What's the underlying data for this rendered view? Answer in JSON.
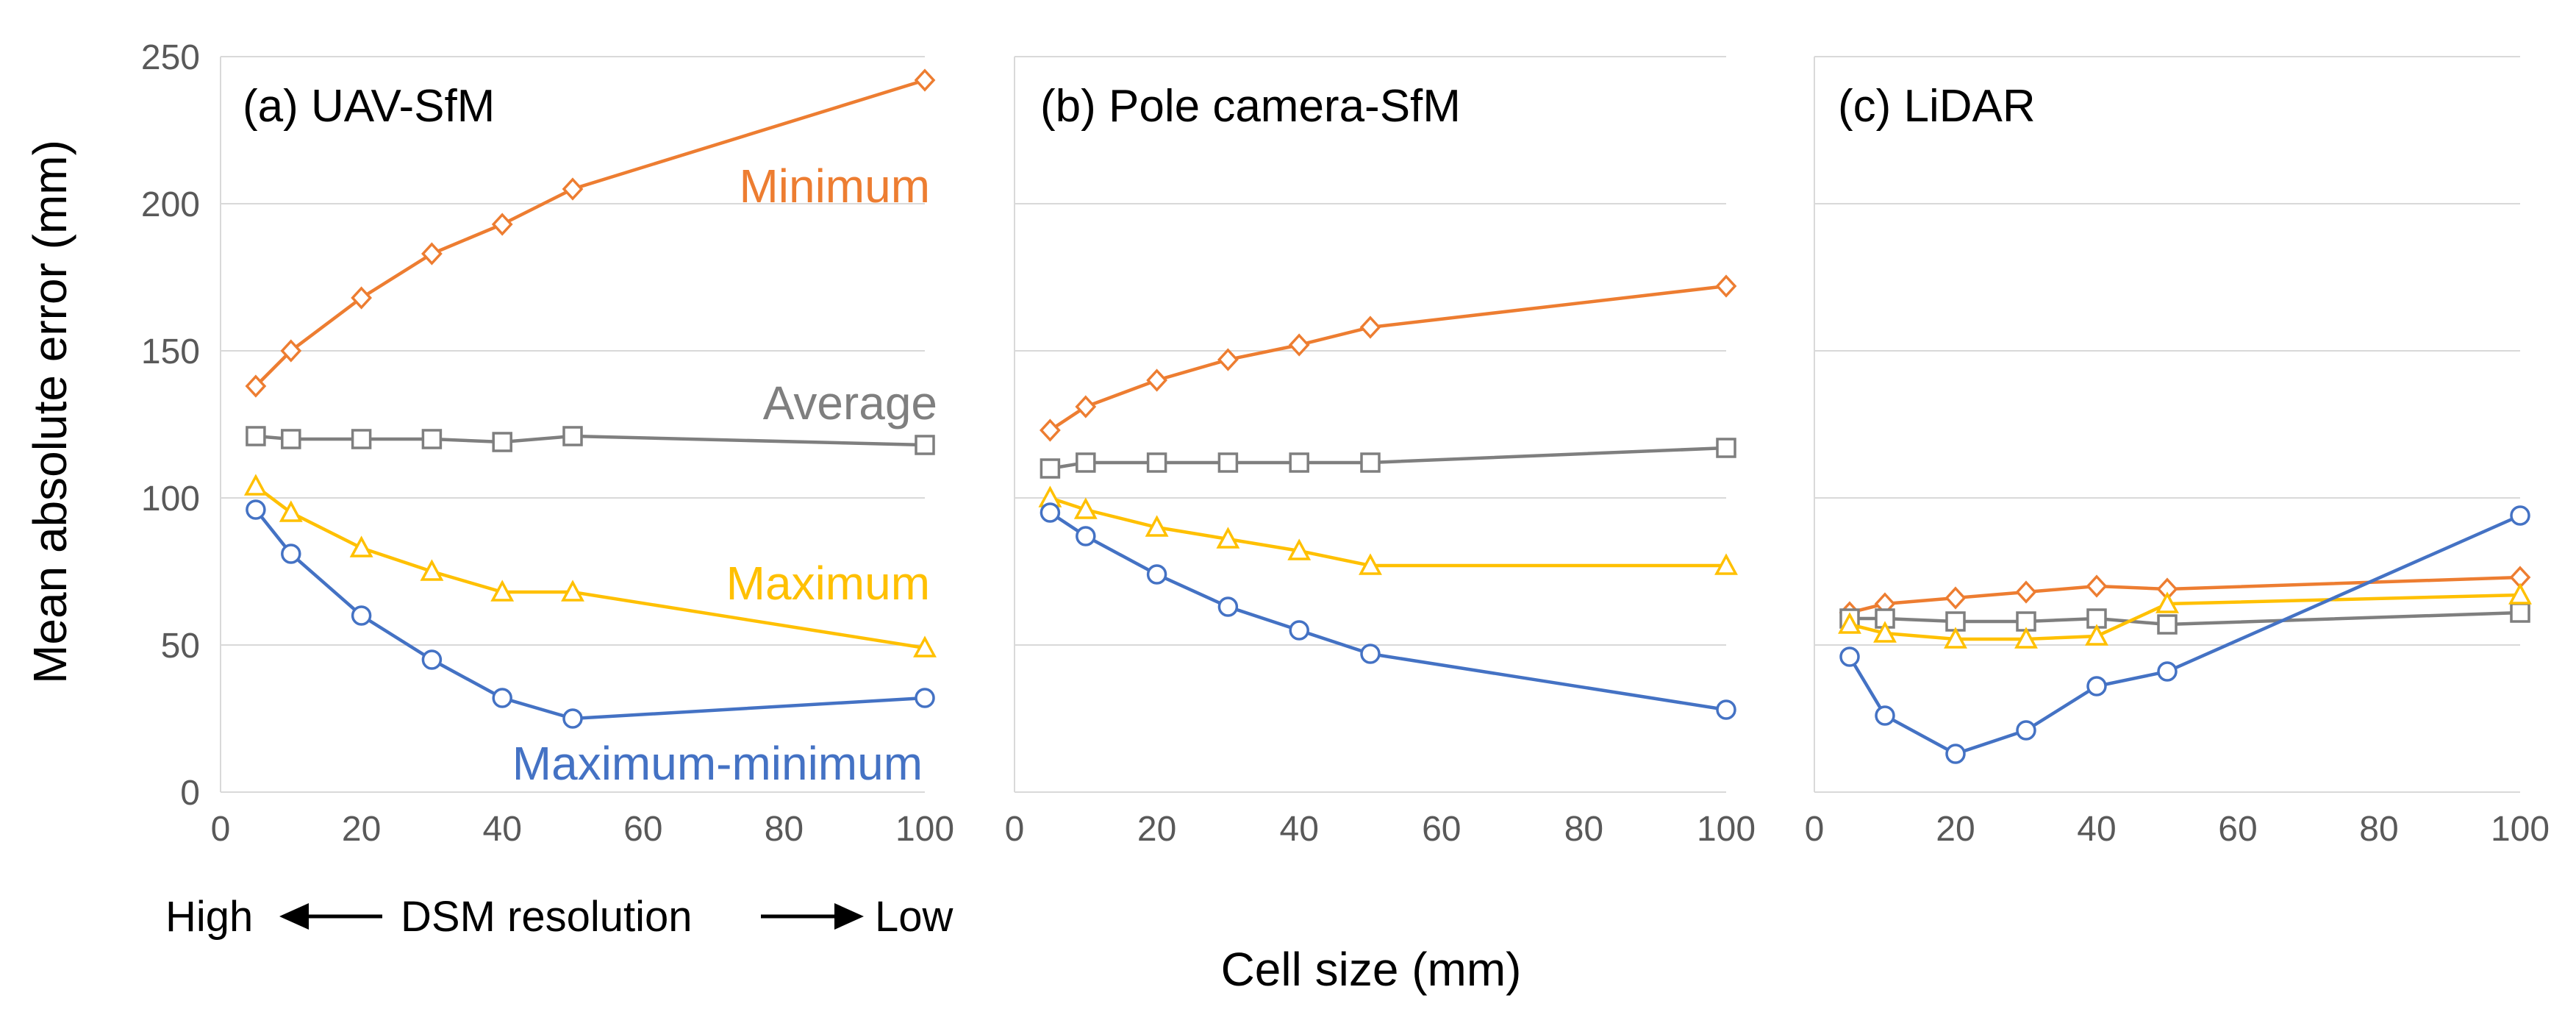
{
  "figure": {
    "ylabel": "Mean absolute error (mm)",
    "xlabel": "Cell size (mm)",
    "resolution_note": {
      "high": "High",
      "middle": "DSM resolution",
      "low": "Low"
    }
  },
  "colors": {
    "minimum": "#ED7D31",
    "average": "#7F7F7F",
    "maximum": "#FFC000",
    "maximum_minimum": "#4472C4",
    "grid": "#D9D9D9",
    "axis_text": "#595959"
  },
  "chart_data": [
    {
      "type": "line",
      "title": "(a) UAV-SfM",
      "x": [
        5,
        10,
        20,
        30,
        40,
        50,
        100
      ],
      "xlim": [
        0,
        100
      ],
      "xticks": [
        0,
        20,
        40,
        60,
        80,
        100
      ],
      "ylim": [
        0,
        250
      ],
      "yticks": [
        0,
        50,
        100,
        150,
        200,
        250
      ],
      "series": [
        {
          "name": "Minimum",
          "key": "minimum",
          "marker": "diamond",
          "values": [
            138,
            150,
            168,
            183,
            193,
            205,
            242
          ]
        },
        {
          "name": "Average",
          "key": "average",
          "marker": "square",
          "values": [
            121,
            120,
            120,
            120,
            119,
            121,
            118
          ]
        },
        {
          "name": "Maximum",
          "key": "maximum",
          "marker": "triangle",
          "values": [
            104,
            95,
            83,
            75,
            68,
            68,
            49
          ]
        },
        {
          "name": "Maximum-minimum",
          "key": "maximum_minimum",
          "marker": "circle",
          "values": [
            96,
            81,
            60,
            45,
            32,
            25,
            32
          ]
        }
      ],
      "annotations": [
        {
          "text": "Minimum",
          "key": "minimum"
        },
        {
          "text": "Average",
          "key": "average"
        },
        {
          "text": "Maximum",
          "key": "maximum"
        },
        {
          "text": "Maximum-minimum",
          "key": "maximum_minimum"
        }
      ]
    },
    {
      "type": "line",
      "title": "(b) Pole camera-SfM",
      "x": [
        5,
        10,
        20,
        30,
        40,
        50,
        100
      ],
      "xlim": [
        0,
        100
      ],
      "xticks": [
        0,
        20,
        40,
        60,
        80,
        100
      ],
      "ylim": [
        0,
        250
      ],
      "yticks": [
        0,
        50,
        100,
        150,
        200,
        250
      ],
      "series": [
        {
          "name": "Minimum",
          "key": "minimum",
          "marker": "diamond",
          "values": [
            123,
            131,
            140,
            147,
            152,
            158,
            172
          ]
        },
        {
          "name": "Average",
          "key": "average",
          "marker": "square",
          "values": [
            110,
            112,
            112,
            112,
            112,
            112,
            117
          ]
        },
        {
          "name": "Maximum",
          "key": "maximum",
          "marker": "triangle",
          "values": [
            100,
            96,
            90,
            86,
            82,
            77,
            77
          ]
        },
        {
          "name": "Maximum-minimum",
          "key": "maximum_minimum",
          "marker": "circle",
          "values": [
            95,
            87,
            74,
            63,
            55,
            47,
            28
          ]
        }
      ],
      "annotations": []
    },
    {
      "type": "line",
      "title": "(c) LiDAR",
      "x": [
        5,
        10,
        20,
        30,
        40,
        50,
        100
      ],
      "xlim": [
        0,
        100
      ],
      "xticks": [
        0,
        20,
        40,
        60,
        80,
        100
      ],
      "ylim": [
        0,
        250
      ],
      "yticks": [
        0,
        50,
        100,
        150,
        200,
        250
      ],
      "series": [
        {
          "name": "Minimum",
          "key": "minimum",
          "marker": "diamond",
          "values": [
            61,
            64,
            66,
            68,
            70,
            69,
            73
          ]
        },
        {
          "name": "Average",
          "key": "average",
          "marker": "square",
          "values": [
            59,
            59,
            58,
            58,
            59,
            57,
            61
          ]
        },
        {
          "name": "Maximum",
          "key": "maximum",
          "marker": "triangle",
          "values": [
            57,
            54,
            52,
            52,
            53,
            64,
            67
          ]
        },
        {
          "name": "Maximum-minimum",
          "key": "maximum_minimum",
          "marker": "circle",
          "values": [
            46,
            26,
            13,
            21,
            36,
            41,
            94
          ]
        }
      ],
      "annotations": []
    }
  ]
}
